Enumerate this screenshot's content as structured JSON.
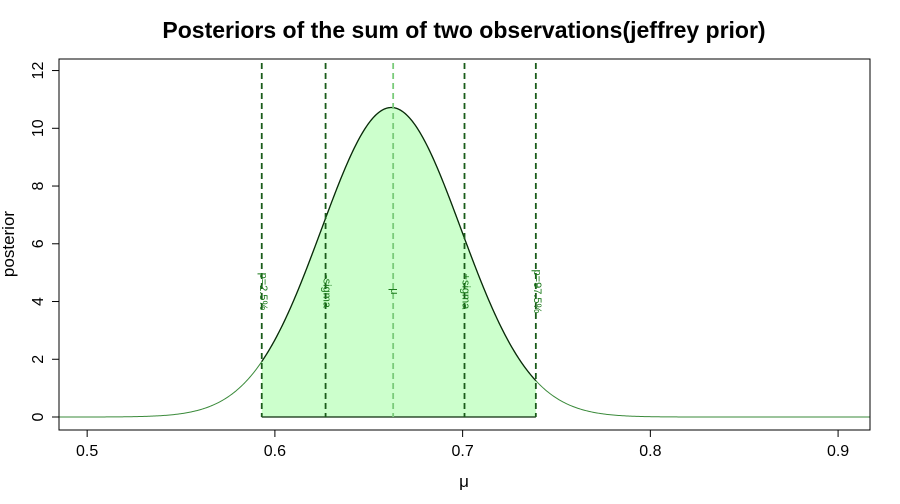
{
  "chart_data": {
    "type": "area",
    "title": "Posteriors of the sum of two observations(jeffrey prior)",
    "xlabel": "μ",
    "ylabel": "posterior",
    "xlim": [
      0.485,
      0.917
    ],
    "ylim": [
      -0.45,
      12.4
    ],
    "xticks": [
      0.5,
      0.6,
      0.7,
      0.8,
      0.9
    ],
    "xtick_labels": [
      "0.5",
      "0.6",
      "0.7",
      "0.8",
      "0.9"
    ],
    "yticks": [
      0,
      2,
      4,
      6,
      8,
      10,
      12
    ],
    "ytick_labels": [
      "0",
      "2",
      "4",
      "6",
      "8",
      "10",
      "12"
    ],
    "grid": false,
    "legend": "none",
    "distribution": {
      "mode": 0.662,
      "peak": 10.72,
      "sd": 0.0372
    },
    "shaded_interval": [
      0.593,
      0.739
    ],
    "vlines": [
      {
        "x": 0.593,
        "label": "p=2.5%",
        "style": "dashed",
        "color": "#1a5c1a"
      },
      {
        "x": 0.627,
        "label": "-sigma",
        "style": "dashed",
        "color": "#1a5c1a"
      },
      {
        "x": 0.663,
        "label": "μ",
        "style": "dashed",
        "color": "#7acb7a"
      },
      {
        "x": 0.701,
        "label": "+sigma",
        "style": "dashed",
        "color": "#1a5c1a"
      },
      {
        "x": 0.739,
        "label": "p=97.5%",
        "style": "dashed",
        "color": "#1a5c1a"
      }
    ],
    "colors": {
      "curve_outer": "#3a8a3a",
      "curve_inner": "#0a2a0a",
      "fill": "#ccffcc",
      "annotation_text": "#1a7a1a"
    }
  }
}
